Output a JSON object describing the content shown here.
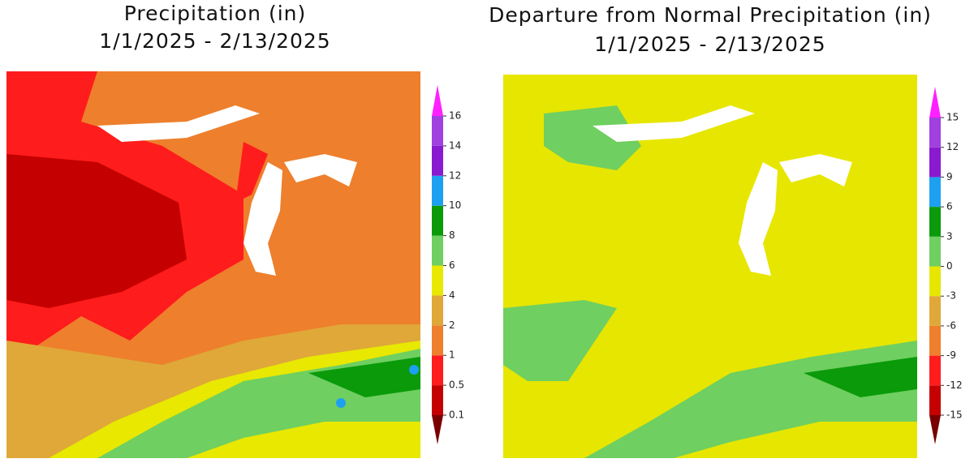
{
  "maps": [
    {
      "title": "Precipitation (in)",
      "subtitle": "1/1/2025 - 2/13/2025",
      "legend": {
        "labels": [
          0.1,
          0.5,
          1,
          2,
          4,
          6,
          8,
          10,
          12,
          14,
          16
        ],
        "colors": [
          "#7a0000",
          "#c40000",
          "#ff1c1c",
          "#ee7f2c",
          "#dfa838",
          "#e8e800",
          "#6fcf60",
          "#0a9a0a",
          "#1ea0f0",
          "#8a1ad0",
          "#a040e0",
          "#ff20ff"
        ]
      }
    },
    {
      "title": "Departure from Normal Precipitation (in)",
      "subtitle": "1/1/2025 - 2/13/2025",
      "legend": {
        "labels": [
          -15,
          -12,
          -9,
          -6,
          -3,
          0,
          3,
          6,
          9,
          12,
          15
        ],
        "colors": [
          "#7a0000",
          "#c40000",
          "#ff1c1c",
          "#ee7f2c",
          "#dfa838",
          "#e6e600",
          "#6fcf60",
          "#0a9a0a",
          "#1ea0f0",
          "#8a1ad0",
          "#a040e0",
          "#ff20ff"
        ]
      }
    }
  ]
}
